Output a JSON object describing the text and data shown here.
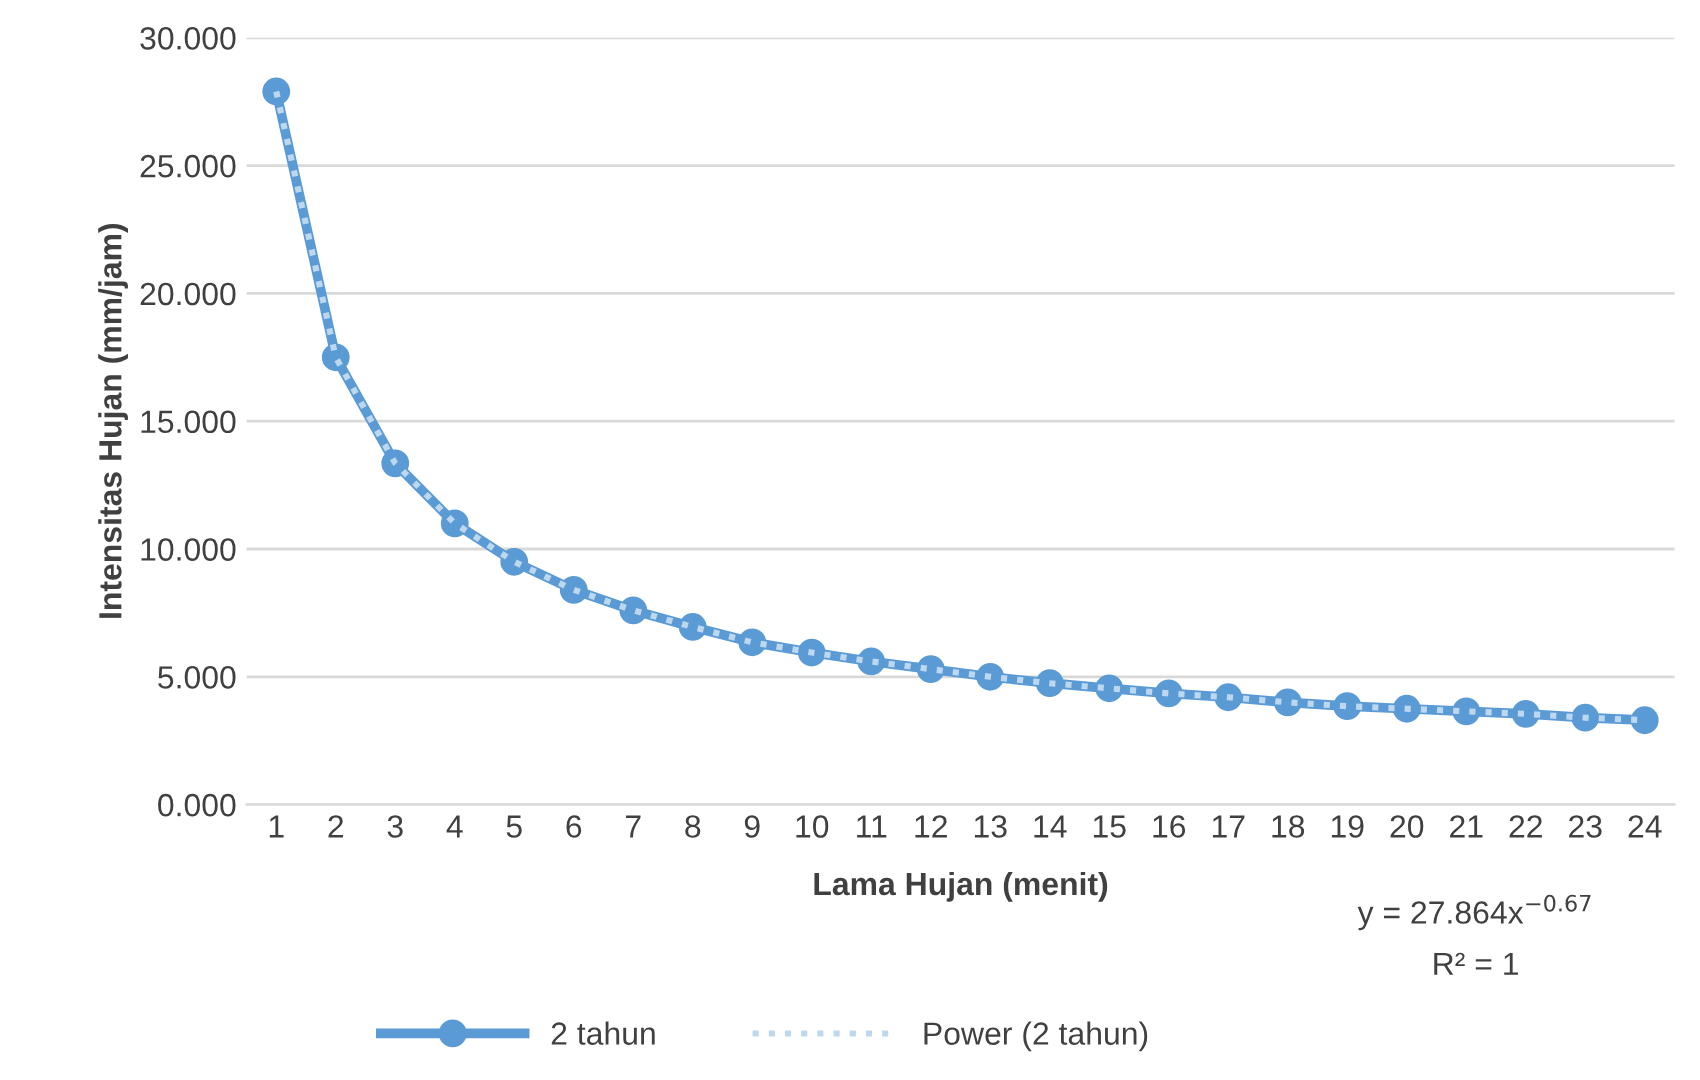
{
  "chart_data": {
    "type": "line",
    "xlabel": "Lama Hujan (menit)",
    "ylabel": "Intensitas Hujan (mm/jam)",
    "categories": [
      "1",
      "2",
      "3",
      "4",
      "5",
      "6",
      "7",
      "8",
      "9",
      "10",
      "11",
      "12",
      "13",
      "14",
      "15",
      "16",
      "17",
      "18",
      "19",
      "20",
      "21",
      "22",
      "23",
      "24"
    ],
    "series": [
      {
        "name": "2 tahun",
        "color": "#5b9bd5",
        "marker": "circle",
        "line_style": "solid",
        "values": [
          27.9,
          17.5,
          13.35,
          11.0,
          9.5,
          8.4,
          7.6,
          6.95,
          6.35,
          5.95,
          5.6,
          5.3,
          5.0,
          4.75,
          4.55,
          4.35,
          4.2,
          4.0,
          3.85,
          3.75,
          3.65,
          3.55,
          3.4,
          3.3
        ]
      },
      {
        "name": "Power (2 tahun)",
        "color": "#bdd7ee",
        "marker": "none",
        "line_style": "dotted",
        "values": [
          27.9,
          17.5,
          13.35,
          11.0,
          9.5,
          8.4,
          7.6,
          6.95,
          6.35,
          5.95,
          5.6,
          5.3,
          5.0,
          4.75,
          4.55,
          4.35,
          4.2,
          4.0,
          3.85,
          3.75,
          3.65,
          3.55,
          3.4,
          3.3
        ]
      }
    ],
    "ylim": [
      0,
      30
    ],
    "yticks": [
      {
        "value": 0,
        "label": "0.000"
      },
      {
        "value": 5,
        "label": "5.000"
      },
      {
        "value": 10,
        "label": "10.000"
      },
      {
        "value": 15,
        "label": "15.000"
      },
      {
        "value": 20,
        "label": "20.000"
      },
      {
        "value": 25,
        "label": "25.000"
      },
      {
        "value": 30,
        "label": "30.000"
      }
    ],
    "grid": "y",
    "legend": "bottom",
    "annotations": [
      "y = 27.864x$^{−0.67}$",
      "R² = 1"
    ]
  }
}
